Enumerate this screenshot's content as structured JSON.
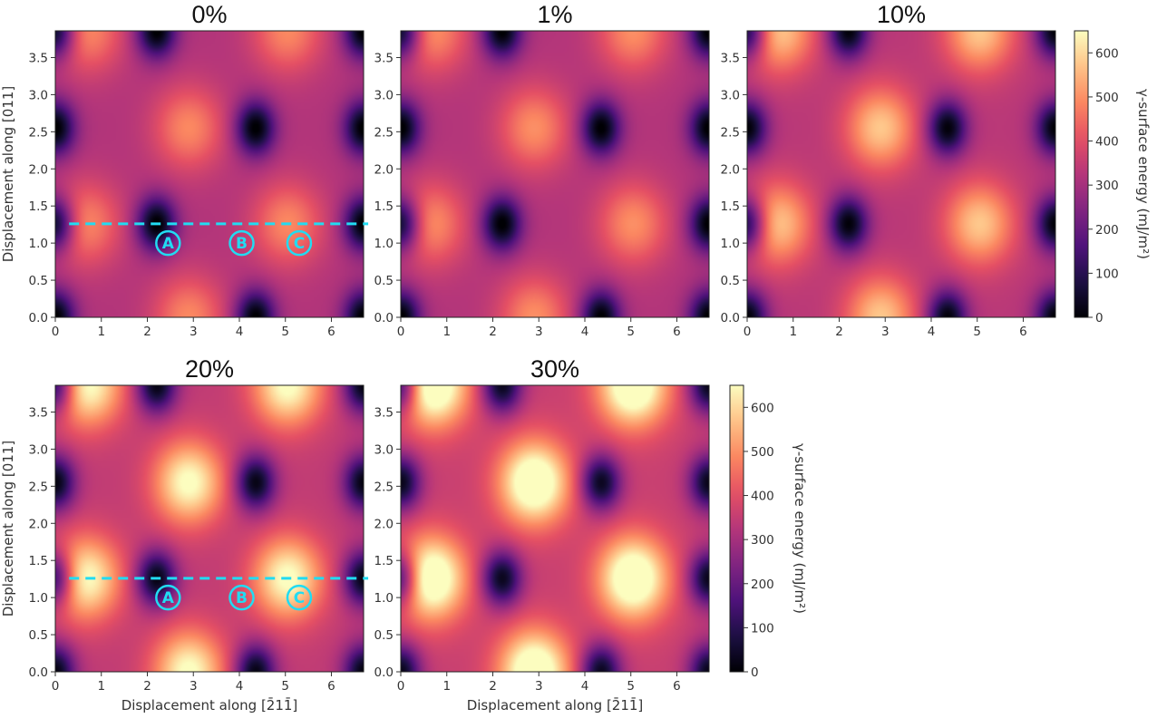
{
  "chart_data": {
    "type": "heatmap",
    "colormap": "magma",
    "panels": [
      {
        "title": "0%",
        "strain": 0.0,
        "show_ylabel": true,
        "show_xlabel": false,
        "colorbar": false,
        "markers": true
      },
      {
        "title": "1%",
        "strain": 0.01,
        "show_ylabel": false,
        "show_xlabel": false,
        "colorbar": false,
        "markers": false
      },
      {
        "title": "10%",
        "strain": 0.1,
        "show_ylabel": false,
        "show_xlabel": false,
        "colorbar": true,
        "markers": false
      },
      {
        "title": "20%",
        "strain": 0.2,
        "show_ylabel": true,
        "show_xlabel": true,
        "colorbar": false,
        "markers": true
      },
      {
        "title": "30%",
        "strain": 0.3,
        "show_ylabel": false,
        "show_xlabel": true,
        "colorbar": true,
        "markers": false
      }
    ],
    "x_ticks": [
      "0",
      "1",
      "2",
      "3",
      "4",
      "5",
      "6"
    ],
    "y_ticks": [
      "0.0",
      "0.5",
      "1.0",
      "1.5",
      "2.0",
      "2.5",
      "3.0",
      "3.5"
    ],
    "xlim": [
      0,
      6.7
    ],
    "ylim": [
      0,
      3.86
    ],
    "xlabel": "Displacement along [2̄11̄]",
    "ylabel": "Displacement along [011]",
    "colorbar": {
      "label": "γ-surface energy (mJ/m²)",
      "range": [
        0,
        650
      ],
      "ticks": [
        "0",
        "100",
        "200",
        "300",
        "400",
        "500",
        "600"
      ]
    },
    "path_line": {
      "y": 1.26,
      "color": "#21dcf2",
      "style": "dashed"
    },
    "markers": [
      {
        "label": "A",
        "x": 2.45,
        "y": 1.0
      },
      {
        "label": "B",
        "x": 4.05,
        "y": 1.0
      },
      {
        "label": "C",
        "x": 5.3,
        "y": 1.0
      }
    ]
  }
}
